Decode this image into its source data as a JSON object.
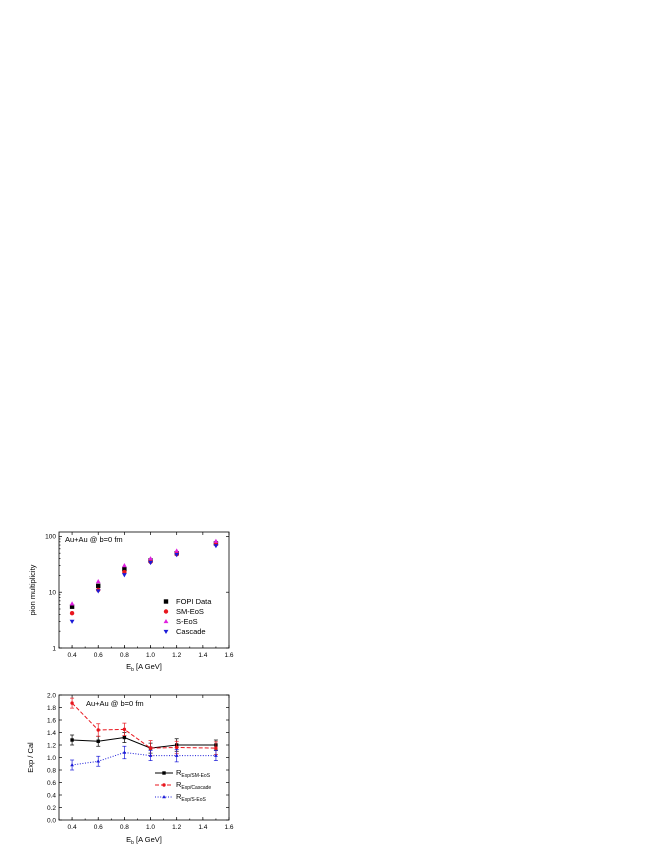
{
  "chart_data": [
    {
      "type": "scatter",
      "title": "Au+Au @ b=0 fm",
      "xlabel_main": "E",
      "xlabel_sub": "b",
      "xlabel_rest": " [A GeV]",
      "ylabel": "pion multiplicity",
      "xlim": [
        0.3,
        1.6
      ],
      "ylim": [
        1,
        120
      ],
      "yscale": "log",
      "xticks": [
        0.4,
        0.6,
        0.8,
        1.0,
        1.2,
        1.4,
        1.6
      ],
      "xtick_labels": [
        "0.4",
        "0.6",
        "0.8",
        "1.0",
        "1.2",
        "1.4",
        "1.6"
      ],
      "yticks": [
        1,
        10,
        100
      ],
      "ytick_labels": [
        "1",
        "10",
        "100"
      ],
      "legend_position": "bottom-right",
      "series": [
        {
          "name": "FOPI Data",
          "marker": "square",
          "color": "#000000",
          "x": [
            0.4,
            0.6,
            0.8,
            1.0,
            1.2,
            1.5
          ],
          "y": [
            5.5,
            13,
            26,
            37,
            50,
            75
          ]
        },
        {
          "name": "SM-EoS",
          "marker": "circle",
          "color": "#e8161e",
          "x": [
            0.4,
            0.6,
            0.8,
            1.0,
            1.2,
            1.5
          ],
          "y": [
            4.2,
            11,
            23,
            35,
            48,
            72
          ]
        },
        {
          "name": "S-EoS",
          "marker": "triangle-up",
          "color": "#e020e0",
          "x": [
            0.4,
            0.6,
            0.8,
            1.0,
            1.2,
            1.5
          ],
          "y": [
            6.2,
            15.5,
            30,
            40,
            55,
            82
          ]
        },
        {
          "name": "Cascade",
          "marker": "triangle-down",
          "color": "#1a1ad8",
          "x": [
            0.4,
            0.6,
            0.8,
            1.0,
            1.2,
            1.5
          ],
          "y": [
            3.0,
            10.5,
            20.5,
            34,
            47,
            68
          ]
        }
      ]
    },
    {
      "type": "line",
      "title": "Au+Au @ b=0 fm",
      "xlabel_main": "E",
      "xlabel_sub": "b",
      "xlabel_rest": " [A GeV]",
      "ylabel": "Exp / Cal",
      "xlim": [
        0.3,
        1.6
      ],
      "ylim": [
        0.0,
        2.0
      ],
      "xticks": [
        0.4,
        0.6,
        0.8,
        1.0,
        1.2,
        1.4,
        1.6
      ],
      "xtick_labels": [
        "0.4",
        "0.6",
        "0.8",
        "1.0",
        "1.2",
        "1.4",
        "1.6"
      ],
      "yticks": [
        0.0,
        0.2,
        0.4,
        0.6,
        0.8,
        1.0,
        1.2,
        1.4,
        1.6,
        1.8,
        2.0
      ],
      "ytick_labels": [
        "0.0",
        "0.2",
        "0.4",
        "0.6",
        "0.8",
        "1.0",
        "1.2",
        "1.4",
        "1.6",
        "1.8",
        "2.0"
      ],
      "legend_position": "bottom-right",
      "series": [
        {
          "name_main": "R",
          "name_sub": "Exp/SM-EoS",
          "marker": "square",
          "dash": "solid",
          "color": "#000000",
          "x": [
            0.4,
            0.6,
            0.8,
            1.0,
            1.2,
            1.5
          ],
          "y": [
            1.28,
            1.26,
            1.32,
            1.15,
            1.2,
            1.2
          ],
          "err": [
            0.08,
            0.08,
            0.08,
            0.08,
            0.1,
            0.08
          ]
        },
        {
          "name_main": "R",
          "name_sub": "Exp/Cascade",
          "marker": "circle",
          "dash": "dashed",
          "color": "#e8161e",
          "x": [
            0.4,
            0.6,
            0.8,
            1.0,
            1.2,
            1.5
          ],
          "y": [
            1.87,
            1.44,
            1.45,
            1.15,
            1.16,
            1.15
          ],
          "err": [
            0.08,
            0.1,
            0.1,
            0.12,
            0.1,
            0.1
          ]
        },
        {
          "name_main": "R",
          "name_sub": "Exp/S-EoS",
          "marker": "triangle-up",
          "dash": "dotted",
          "color": "#1a1ad8",
          "x": [
            0.4,
            0.6,
            0.8,
            1.0,
            1.2,
            1.5
          ],
          "y": [
            0.88,
            0.94,
            1.08,
            1.03,
            1.03,
            1.03
          ],
          "err": [
            0.08,
            0.08,
            0.1,
            0.08,
            0.1,
            0.08
          ]
        }
      ]
    }
  ]
}
